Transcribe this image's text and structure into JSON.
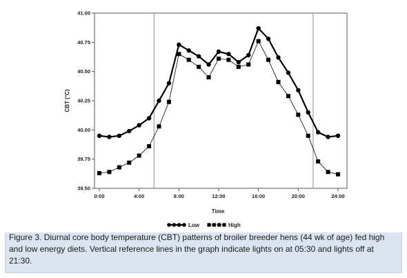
{
  "chart_data": {
    "type": "line",
    "title": "",
    "xlabel": "Time",
    "ylabel": "CBT (°C)",
    "ylim": [
      39.5,
      41.0
    ],
    "xlim": [
      0,
      24.5
    ],
    "y_ticks": [
      "39.50",
      "39.75",
      "40.00",
      "40.25",
      "40.50",
      "40.75",
      "41.00"
    ],
    "x_ticks": [
      "0:00",
      "4:00",
      "8:00",
      "12:00",
      "16:00",
      "20:00",
      "24:00"
    ],
    "x": [
      0,
      1,
      2,
      3,
      4,
      5,
      6,
      7,
      8,
      9,
      10,
      11,
      12,
      13,
      14,
      15,
      16,
      17,
      18,
      19,
      20,
      21,
      22,
      23,
      24
    ],
    "series": [
      {
        "name": "Low",
        "marker": "circle",
        "line_width": 2.2,
        "color": "#000000",
        "values": [
          39.95,
          39.94,
          39.95,
          39.99,
          40.04,
          40.1,
          40.25,
          40.4,
          40.73,
          40.68,
          40.63,
          40.56,
          40.67,
          40.65,
          40.58,
          40.64,
          40.87,
          40.78,
          40.62,
          40.49,
          40.34,
          40.15,
          39.98,
          39.94,
          39.95
        ]
      },
      {
        "name": "High",
        "marker": "square",
        "line_width": 0.8,
        "color": "#000000",
        "values": [
          39.63,
          39.64,
          39.68,
          39.72,
          39.78,
          39.86,
          40.03,
          40.24,
          40.65,
          40.6,
          40.54,
          40.45,
          40.61,
          40.6,
          40.54,
          40.56,
          40.76,
          40.6,
          40.41,
          40.29,
          40.13,
          39.95,
          39.73,
          39.64,
          39.62
        ]
      }
    ],
    "reference_lines_x": [
      5.5,
      21.5
    ],
    "grid": false,
    "legend_position": "bottom"
  },
  "caption": "Figure 3. Diurnal core body temperature (CBT) patterns of broiler breeder hens (44 wk of age) fed high and low energy diets. Vertical reference lines in the graph indicate lights on at 05:30 and lights off at 21:30."
}
